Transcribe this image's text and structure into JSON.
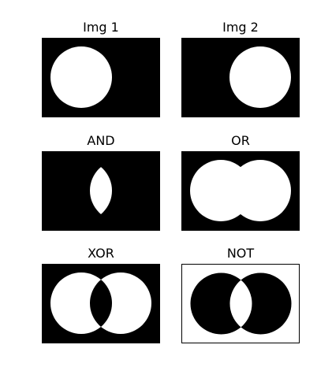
{
  "panels": [
    {
      "title": "Img 1",
      "op": "img1"
    },
    {
      "title": "Img 2",
      "op": "img2"
    },
    {
      "title": "AND",
      "op": "and"
    },
    {
      "title": "OR",
      "op": "or"
    },
    {
      "title": "XOR",
      "op": "xor"
    },
    {
      "title": "NOT",
      "op": "not"
    }
  ],
  "colors": {
    "foreground": "#ffffff",
    "background": "#000000"
  }
}
